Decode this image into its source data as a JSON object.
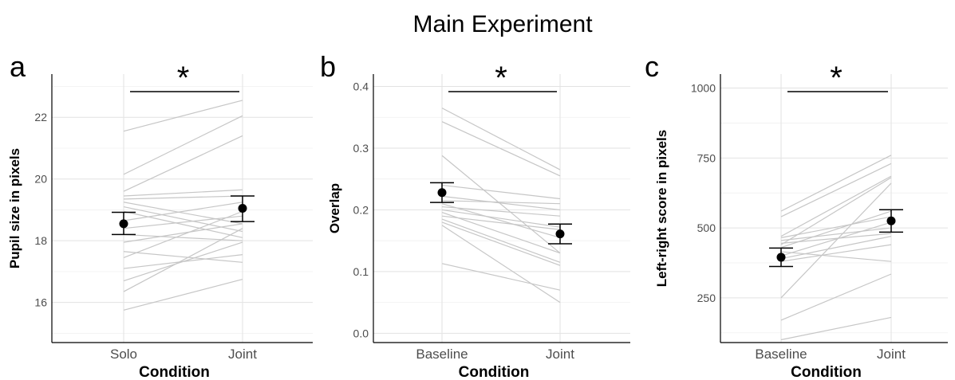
{
  "figure": {
    "title": "Main Experiment"
  },
  "chart_data": [
    {
      "type": "line",
      "panel_label": "a",
      "xlabel": "Condition",
      "ylabel": "Pupil size in pixels",
      "categories": [
        "Solo",
        "Joint"
      ],
      "ylim": [
        14.7,
        23.4
      ],
      "yticks": [
        16,
        18,
        20,
        22
      ],
      "grid": true,
      "significance": "*",
      "subjects": [
        [
          21.55,
          22.55
        ],
        [
          20.15,
          22.05
        ],
        [
          19.6,
          21.4
        ],
        [
          19.45,
          19.65
        ],
        [
          19.35,
          19.45
        ],
        [
          19.25,
          18.55
        ],
        [
          19.1,
          18.3
        ],
        [
          18.95,
          18.1
        ],
        [
          18.65,
          19.25
        ],
        [
          18.4,
          18.8
        ],
        [
          18.2,
          18.0
        ],
        [
          17.95,
          18.55
        ],
        [
          17.65,
          17.3
        ],
        [
          17.45,
          18.95
        ],
        [
          17.1,
          17.55
        ],
        [
          16.7,
          17.95
        ],
        [
          16.35,
          18.4
        ],
        [
          15.75,
          16.75
        ]
      ],
      "mean": [
        18.55,
        19.05
      ],
      "ci_low": [
        18.2,
        18.62
      ],
      "ci_high": [
        18.92,
        19.45
      ]
    },
    {
      "type": "line",
      "panel_label": "b",
      "xlabel": "Condition",
      "ylabel": "Overlap",
      "categories": [
        "Baseline",
        "Joint"
      ],
      "ylim": [
        -0.015,
        0.42
      ],
      "yticks": [
        0.0,
        0.1,
        0.2,
        0.3,
        0.4
      ],
      "ytick_labels": [
        "0.0",
        "0.1",
        "0.2",
        "0.3",
        "0.4"
      ],
      "grid": true,
      "significance": "*",
      "subjects": [
        [
          0.365,
          0.265
        ],
        [
          0.343,
          0.255
        ],
        [
          0.288,
          0.13
        ],
        [
          0.24,
          0.218
        ],
        [
          0.222,
          0.2
        ],
        [
          0.215,
          0.21
        ],
        [
          0.21,
          0.155
        ],
        [
          0.205,
          0.19
        ],
        [
          0.2,
          0.172
        ],
        [
          0.196,
          0.13
        ],
        [
          0.19,
          0.168
        ],
        [
          0.185,
          0.115
        ],
        [
          0.18,
          0.11
        ],
        [
          0.175,
          0.05
        ],
        [
          0.113,
          0.07
        ]
      ],
      "mean": [
        0.228,
        0.161
      ],
      "ci_low": [
        0.212,
        0.145
      ],
      "ci_high": [
        0.244,
        0.177
      ]
    },
    {
      "type": "line",
      "panel_label": "c",
      "xlabel": "Condition",
      "ylabel": "Left-right score in pixels",
      "categories": [
        "Baseline",
        "Joint"
      ],
      "ylim": [
        90,
        1050
      ],
      "yticks": [
        250,
        500,
        750,
        1000
      ],
      "grid": true,
      "significance": "*",
      "subjects": [
        [
          560,
          760
        ],
        [
          540,
          730
        ],
        [
          470,
          685
        ],
        [
          465,
          540
        ],
        [
          455,
          500
        ],
        [
          445,
          480
        ],
        [
          440,
          680
        ],
        [
          430,
          560
        ],
        [
          415,
          380
        ],
        [
          400,
          520
        ],
        [
          390,
          470
        ],
        [
          380,
          440
        ],
        [
          250,
          660
        ],
        [
          170,
          335
        ],
        [
          100,
          180
        ]
      ],
      "mean": [
        395,
        525
      ],
      "ci_low": [
        362,
        485
      ],
      "ci_high": [
        428,
        565
      ]
    }
  ]
}
